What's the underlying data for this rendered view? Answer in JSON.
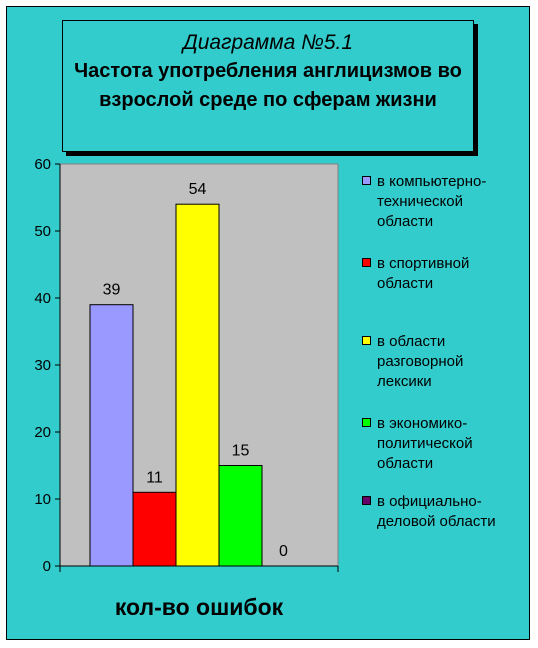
{
  "title": {
    "number": "Диаграмма №5.1",
    "text": "Частота употребления англицизмов во взрослой среде по сферам жизни"
  },
  "chart_data": {
    "type": "bar",
    "categories": [
      "кол-во ошибок"
    ],
    "ylim": [
      0,
      60
    ],
    "yticks": [
      0,
      10,
      20,
      30,
      40,
      50,
      60
    ],
    "grid": false,
    "legend_position": "right",
    "series": [
      {
        "name": "в компьютерно-технической области",
        "values": [
          39
        ],
        "color": "#9999ff"
      },
      {
        "name": "в спортивной области",
        "values": [
          11
        ],
        "color": "#ff0000"
      },
      {
        "name": "в области разговорной лексики",
        "values": [
          54
        ],
        "color": "#ffff00"
      },
      {
        "name": "в экономико-политической области",
        "values": [
          15
        ],
        "color": "#00ff00"
      },
      {
        "name": "в официально-деловой области",
        "values": [
          0
        ],
        "color": "#660066"
      }
    ],
    "data_labels": [
      "39",
      "11",
      "54",
      "15",
      "0"
    ]
  },
  "legend": {
    "items": [
      {
        "lines": [
          "в компьютерно-",
          "технической",
          "области"
        ]
      },
      {
        "lines": [
          "в спортивной",
          "области"
        ]
      },
      {
        "lines": [
          "в области",
          "разговорной",
          "лексики"
        ]
      },
      {
        "lines": [
          "в экономико-",
          "политической",
          "области"
        ]
      },
      {
        "lines": [
          "в официально-",
          "деловой области"
        ]
      }
    ]
  },
  "colors": {
    "background": "#33cccc",
    "plot_area": "#c0c0c0"
  }
}
